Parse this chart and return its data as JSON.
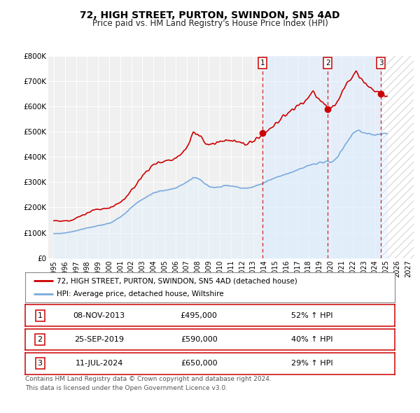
{
  "title": "72, HIGH STREET, PURTON, SWINDON, SN5 4AD",
  "subtitle": "Price paid vs. HM Land Registry's House Price Index (HPI)",
  "legend_line1": "72, HIGH STREET, PURTON, SWINDON, SN5 4AD (detached house)",
  "legend_line2": "HPI: Average price, detached house, Wiltshire",
  "red_color": "#cc0000",
  "blue_color": "#7aaadd",
  "blue_fill_color": "#ddeeff",
  "hatch_color": "#dddddd",
  "footnote1": "Contains HM Land Registry data © Crown copyright and database right 2024.",
  "footnote2": "This data is licensed under the Open Government Licence v3.0.",
  "sales": [
    {
      "num": 1,
      "date": "08-NOV-2013",
      "date_x": 2013.854,
      "price": 495000,
      "pct": "52%",
      "dir": "↑"
    },
    {
      "num": 2,
      "date": "25-SEP-2019",
      "date_x": 2019.729,
      "price": 590000,
      "pct": "40%",
      "dir": "↑"
    },
    {
      "num": 3,
      "date": "11-JUL-2024",
      "date_x": 2024.531,
      "price": 650000,
      "pct": "29%",
      "dir": "↑"
    }
  ],
  "ylim": [
    0,
    800000
  ],
  "yticks": [
    0,
    100000,
    200000,
    300000,
    400000,
    500000,
    600000,
    700000,
    800000
  ],
  "ytick_labels": [
    "£0",
    "£100K",
    "£200K",
    "£300K",
    "£400K",
    "£500K",
    "£600K",
    "£700K",
    "£800K"
  ],
  "xlim_start": 1994.5,
  "xlim_end": 2027.5,
  "xticks": [
    1995,
    1996,
    1997,
    1998,
    1999,
    2000,
    2001,
    2002,
    2003,
    2004,
    2005,
    2006,
    2007,
    2008,
    2009,
    2010,
    2011,
    2012,
    2013,
    2014,
    2015,
    2016,
    2017,
    2018,
    2019,
    2020,
    2021,
    2022,
    2023,
    2024,
    2025,
    2026,
    2027
  ],
  "xtick_labels": [
    "1995",
    "1996",
    "1997",
    "1998",
    "1999",
    "2000",
    "2001",
    "2002",
    "2003",
    "2004",
    "2005",
    "2006",
    "2007",
    "2008",
    "2009",
    "2010",
    "2011",
    "2012",
    "2013",
    "2014",
    "2015",
    "2016",
    "2017",
    "2018",
    "2019",
    "2020",
    "2021",
    "2022",
    "2023",
    "2024",
    "2025",
    "2026",
    "2027"
  ]
}
